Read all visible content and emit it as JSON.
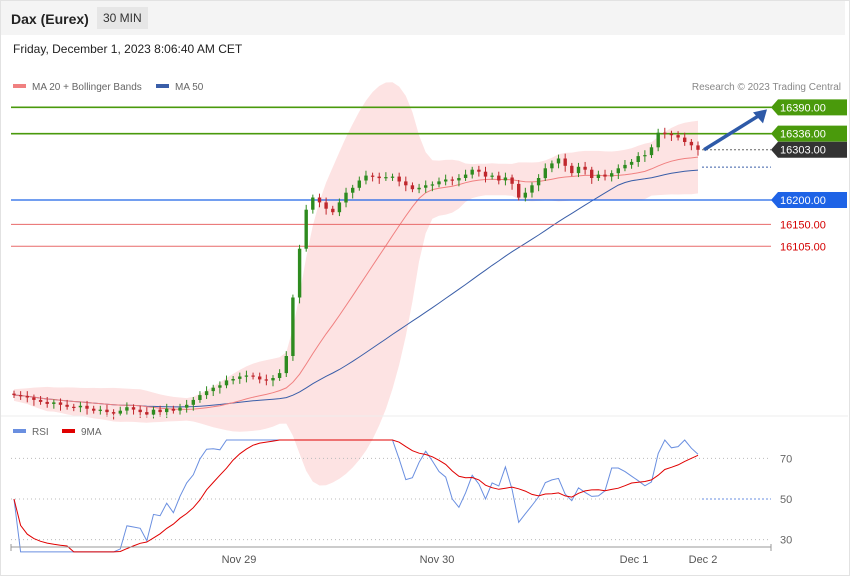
{
  "header": {
    "instrument": "Dax (Eurex)",
    "timeframe": "30 MIN",
    "datetime": "Friday, December 1, 2023 8:06:40 AM CET",
    "copyright": "Research © 2023 Trading Central"
  },
  "colors": {
    "bollinger_fill": "#fde3e3",
    "ma20": "#f08080",
    "ma50": "#3a5ea8",
    "candle_up": "#2e8b1f",
    "candle_down": "#c0272d",
    "resistance": "#4a9a0c",
    "pivot": "#1e63e6",
    "support": "#e86a6a",
    "current": "#333333",
    "arrow": "#2e5aa8",
    "rsi": "#6a8fe0",
    "rsi_ma": "#e00000"
  },
  "legend": {
    "ma20_label": "MA 20 + Bollinger Bands",
    "ma50_label": "MA 50",
    "rsi_label": "RSI",
    "rsi_ma_label": "9MA"
  },
  "chart_data": {
    "type": "candlestick",
    "y_range": [
      15755,
      16405
    ],
    "levels": [
      {
        "value": 16390.0,
        "label": "16390.00",
        "kind": "resistance"
      },
      {
        "value": 16336.0,
        "label": "16336.00",
        "kind": "resistance"
      },
      {
        "value": 16303.0,
        "label": "16303.00",
        "kind": "current"
      },
      {
        "value": 16200.0,
        "label": "16200.00",
        "kind": "pivot"
      },
      {
        "value": 16150.0,
        "label": "16150.00",
        "kind": "support"
      },
      {
        "value": 16105.0,
        "label": "16105.00",
        "kind": "support"
      }
    ],
    "x_ticks": [
      "Nov 29",
      "Nov 30",
      "Dec 1",
      "Dec 2"
    ],
    "price_closes": [
      15800,
      15798,
      15795,
      15790,
      15786,
      15782,
      15785,
      15780,
      15776,
      15775,
      15778,
      15772,
      15768,
      15770,
      15765,
      15762,
      15768,
      15775,
      15770,
      15765,
      15760,
      15770,
      15765,
      15772,
      15768,
      15774,
      15780,
      15790,
      15800,
      15808,
      15815,
      15820,
      15830,
      15833,
      15838,
      15840,
      15838,
      15832,
      15830,
      15835,
      15845,
      15880,
      16000,
      16100,
      16180,
      16205,
      16195,
      16182,
      16175,
      16195,
      16215,
      16225,
      16240,
      16250,
      16248,
      16245,
      16247,
      16248,
      16238,
      16230,
      16222,
      16225,
      16230,
      16232,
      16238,
      16242,
      16240,
      16245,
      16252,
      16262,
      16258,
      16248,
      16250,
      16240,
      16246,
      16233,
      16205,
      16215,
      16230,
      16245,
      16265,
      16275,
      16285,
      16270,
      16255,
      16268,
      16262,
      16245,
      16252,
      16248,
      16255,
      16265,
      16272,
      16278,
      16290,
      16292,
      16308,
      16338,
      16336,
      16333,
      16328,
      16319,
      16312,
      16303
    ],
    "rsi": {
      "y_range": [
        20,
        80
      ],
      "levels": [
        70,
        50,
        30
      ],
      "current": 50
    }
  }
}
